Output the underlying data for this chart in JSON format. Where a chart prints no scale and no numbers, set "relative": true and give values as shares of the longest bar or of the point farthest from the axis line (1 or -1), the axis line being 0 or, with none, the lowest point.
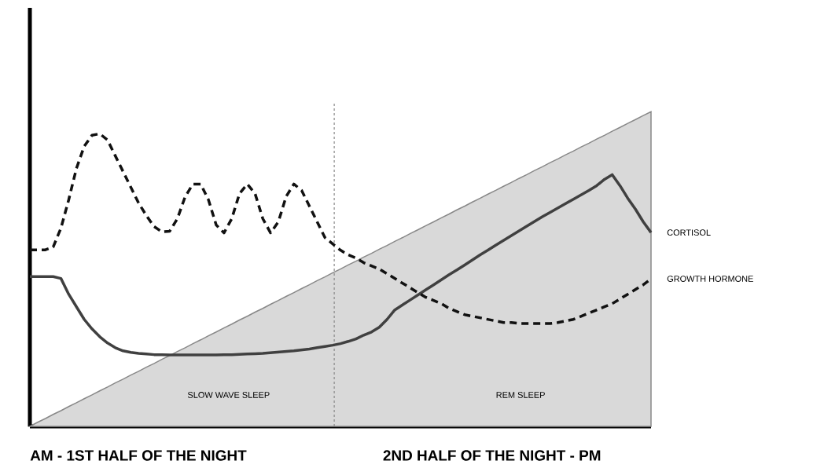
{
  "chart_data": {
    "type": "line",
    "relative": true,
    "categories": [
      null,
      null,
      null,
      null,
      null,
      null,
      null,
      null,
      null,
      null,
      null,
      null,
      null,
      null,
      null,
      null,
      null,
      null,
      null,
      null,
      null,
      null,
      null,
      null,
      null,
      null,
      null,
      null,
      null,
      null,
      null,
      null,
      null,
      null,
      null,
      null,
      null,
      null,
      null,
      null,
      null,
      null,
      null,
      null,
      null,
      null,
      null,
      null,
      null,
      null,
      null,
      null,
      null,
      null,
      null,
      null,
      null,
      null,
      null,
      null,
      null,
      null,
      null,
      null,
      null,
      null,
      null,
      null,
      null,
      null,
      null,
      null,
      null,
      null,
      null,
      null,
      null,
      null,
      null,
      null,
      null
    ],
    "series": [
      {
        "type": "area",
        "color": "#d9d9d9",
        "values": [
          0,
          0.013,
          0.025,
          0.038,
          0.05,
          0.063,
          0.075,
          0.088,
          0.1,
          0.113,
          0.125,
          0.138,
          0.15,
          0.163,
          0.175,
          0.188,
          0.2,
          0.213,
          0.225,
          0.238,
          0.25,
          0.263,
          0.275,
          0.288,
          0.3,
          0.313,
          0.325,
          0.338,
          0.35,
          0.363,
          0.375,
          0.388,
          0.4,
          0.413,
          0.425,
          0.438,
          0.45,
          0.463,
          0.475,
          0.488,
          0.5,
          0.513,
          0.525,
          0.538,
          0.55,
          0.563,
          0.575,
          0.588,
          0.6,
          0.613,
          0.625,
          0.638,
          0.65,
          0.663,
          0.675,
          0.688,
          0.7,
          0.713,
          0.725,
          0.738,
          0.75,
          0.763,
          0.775,
          0.788,
          0.8,
          0.813,
          0.825,
          0.838,
          0.85,
          0.863,
          0.875,
          0.888,
          0.9,
          0.913,
          0.925,
          0.938,
          0.95,
          0.963,
          0.975,
          0.988,
          1
        ]
      },
      {
        "name": "CORTISOL",
        "color": "#404040",
        "line_style": "solid",
        "values": [
          0.476,
          0.476,
          0.476,
          0.476,
          0.47,
          0.42,
          0.38,
          0.34,
          0.31,
          0.285,
          0.265,
          0.25,
          0.24,
          0.235,
          0.232,
          0.23,
          0.228,
          0.228,
          0.227,
          0.227,
          0.227,
          0.227,
          0.227,
          0.227,
          0.227,
          0.228,
          0.228,
          0.229,
          0.23,
          0.231,
          0.232,
          0.234,
          0.236,
          0.238,
          0.24,
          0.243,
          0.246,
          0.25,
          0.254,
          0.258,
          0.263,
          0.27,
          0.278,
          0.29,
          0.3,
          0.315,
          0.34,
          0.37,
          0.386,
          0.402,
          0.418,
          0.434,
          0.45,
          0.466,
          0.482,
          0.497,
          0.513,
          0.529,
          0.545,
          0.56,
          0.576,
          0.591,
          0.606,
          0.621,
          0.636,
          0.651,
          0.666,
          0.68,
          0.694,
          0.708,
          0.722,
          0.736,
          0.75,
          0.765,
          0.785,
          0.8,
          0.765,
          0.725,
          0.69,
          0.65,
          0.616
        ]
      },
      {
        "name": "GROWTH HORMONE",
        "color": "#111111",
        "line_style": "dashed",
        "values": [
          0.561,
          0.561,
          0.561,
          0.57,
          0.63,
          0.72,
          0.82,
          0.89,
          0.925,
          0.93,
          0.91,
          0.86,
          0.81,
          0.76,
          0.71,
          0.67,
          0.635,
          0.618,
          0.62,
          0.66,
          0.73,
          0.77,
          0.77,
          0.72,
          0.64,
          0.615,
          0.66,
          0.74,
          0.77,
          0.74,
          0.66,
          0.615,
          0.65,
          0.73,
          0.77,
          0.75,
          0.7,
          0.65,
          0.6,
          0.58,
          0.56,
          0.545,
          0.535,
          0.52,
          0.51,
          0.5,
          0.485,
          0.47,
          0.455,
          0.44,
          0.425,
          0.41,
          0.4,
          0.39,
          0.375,
          0.365,
          0.355,
          0.35,
          0.345,
          0.34,
          0.335,
          0.33,
          0.33,
          0.327,
          0.327,
          0.327,
          0.327,
          0.327,
          0.33,
          0.335,
          0.34,
          0.35,
          0.36,
          0.37,
          0.38,
          0.39,
          0.405,
          0.42,
          0.435,
          0.45,
          0.469
        ]
      }
    ],
    "annotations": [
      "SLOW WAVE SLEEP",
      "REM SLEEP",
      "AM - 1ST HALF OF THE NIGHT",
      "2ND HALF OF THE NIGHT - PM"
    ]
  }
}
